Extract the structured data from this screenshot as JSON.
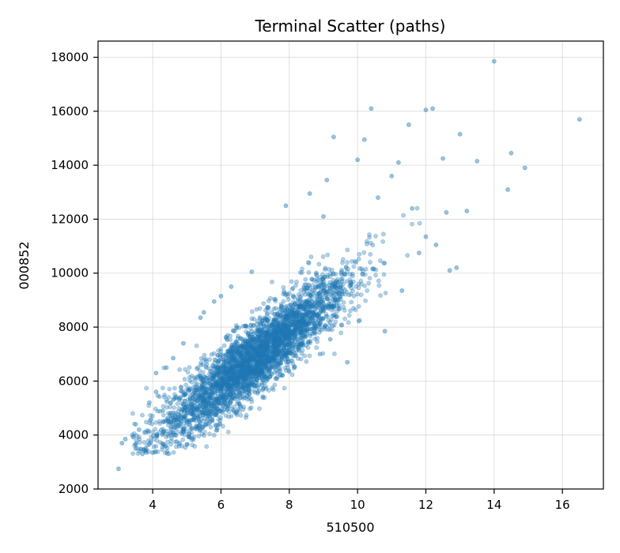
{
  "chart_data": {
    "type": "scatter",
    "title": "Terminal Scatter (paths)",
    "xlabel": "510500",
    "ylabel": "000852",
    "xlim": [
      2.4,
      17.2
    ],
    "ylim": [
      2000,
      18600
    ],
    "xticks": [
      4,
      6,
      8,
      10,
      12,
      14,
      16
    ],
    "yticks": [
      2000,
      4000,
      6000,
      8000,
      10000,
      12000,
      14000,
      16000,
      18000
    ],
    "grid": true,
    "point_color": "#1f77b4",
    "point_alpha": 0.35,
    "n_points": 20000,
    "relationship": "strong positive linear correlation; dense core from (4,4000) to (10,10000), outliers up to (16.5,15700) and (14,17850)",
    "series": [
      {
        "name": "",
        "points": [
          [
            3.0,
            2750
          ],
          [
            3.1,
            3700
          ],
          [
            3.2,
            3850
          ],
          [
            3.5,
            3500
          ],
          [
            3.5,
            3650
          ],
          [
            3.6,
            4200
          ],
          [
            3.7,
            3300
          ],
          [
            3.8,
            3400
          ],
          [
            3.9,
            3650
          ],
          [
            3.9,
            5200
          ],
          [
            4.0,
            3350
          ],
          [
            4.1,
            6300
          ],
          [
            4.1,
            5600
          ],
          [
            4.3,
            4900
          ],
          [
            4.4,
            6500
          ],
          [
            4.6,
            6850
          ],
          [
            4.9,
            7400
          ],
          [
            5.0,
            3650
          ],
          [
            5.4,
            8350
          ],
          [
            5.5,
            8550
          ],
          [
            5.8,
            8950
          ],
          [
            6.0,
            9150
          ],
          [
            6.3,
            9500
          ],
          [
            6.5,
            4950
          ],
          [
            6.9,
            10050
          ],
          [
            7.0,
            5800
          ],
          [
            7.2,
            5850
          ],
          [
            7.6,
            6100
          ],
          [
            7.9,
            12500
          ],
          [
            8.2,
            6950
          ],
          [
            8.6,
            12950
          ],
          [
            8.9,
            7000
          ],
          [
            9.0,
            12100
          ],
          [
            9.1,
            13450
          ],
          [
            9.2,
            7550
          ],
          [
            9.3,
            15050
          ],
          [
            9.7,
            6700
          ],
          [
            10.0,
            14200
          ],
          [
            10.2,
            14950
          ],
          [
            10.4,
            16100
          ],
          [
            10.6,
            12800
          ],
          [
            10.8,
            7850
          ],
          [
            11.0,
            13600
          ],
          [
            11.2,
            14100
          ],
          [
            11.3,
            9350
          ],
          [
            11.5,
            15500
          ],
          [
            11.6,
            12400
          ],
          [
            11.8,
            10750
          ],
          [
            12.0,
            11350
          ],
          [
            12.0,
            16050
          ],
          [
            12.2,
            16100
          ],
          [
            12.3,
            11050
          ],
          [
            12.5,
            14250
          ],
          [
            12.6,
            12250
          ],
          [
            12.7,
            10100
          ],
          [
            12.9,
            10200
          ],
          [
            13.0,
            15150
          ],
          [
            13.2,
            12300
          ],
          [
            13.5,
            14150
          ],
          [
            14.0,
            17850
          ],
          [
            14.4,
            13100
          ],
          [
            14.5,
            14450
          ],
          [
            14.9,
            13900
          ],
          [
            16.5,
            15700
          ]
        ]
      }
    ]
  }
}
